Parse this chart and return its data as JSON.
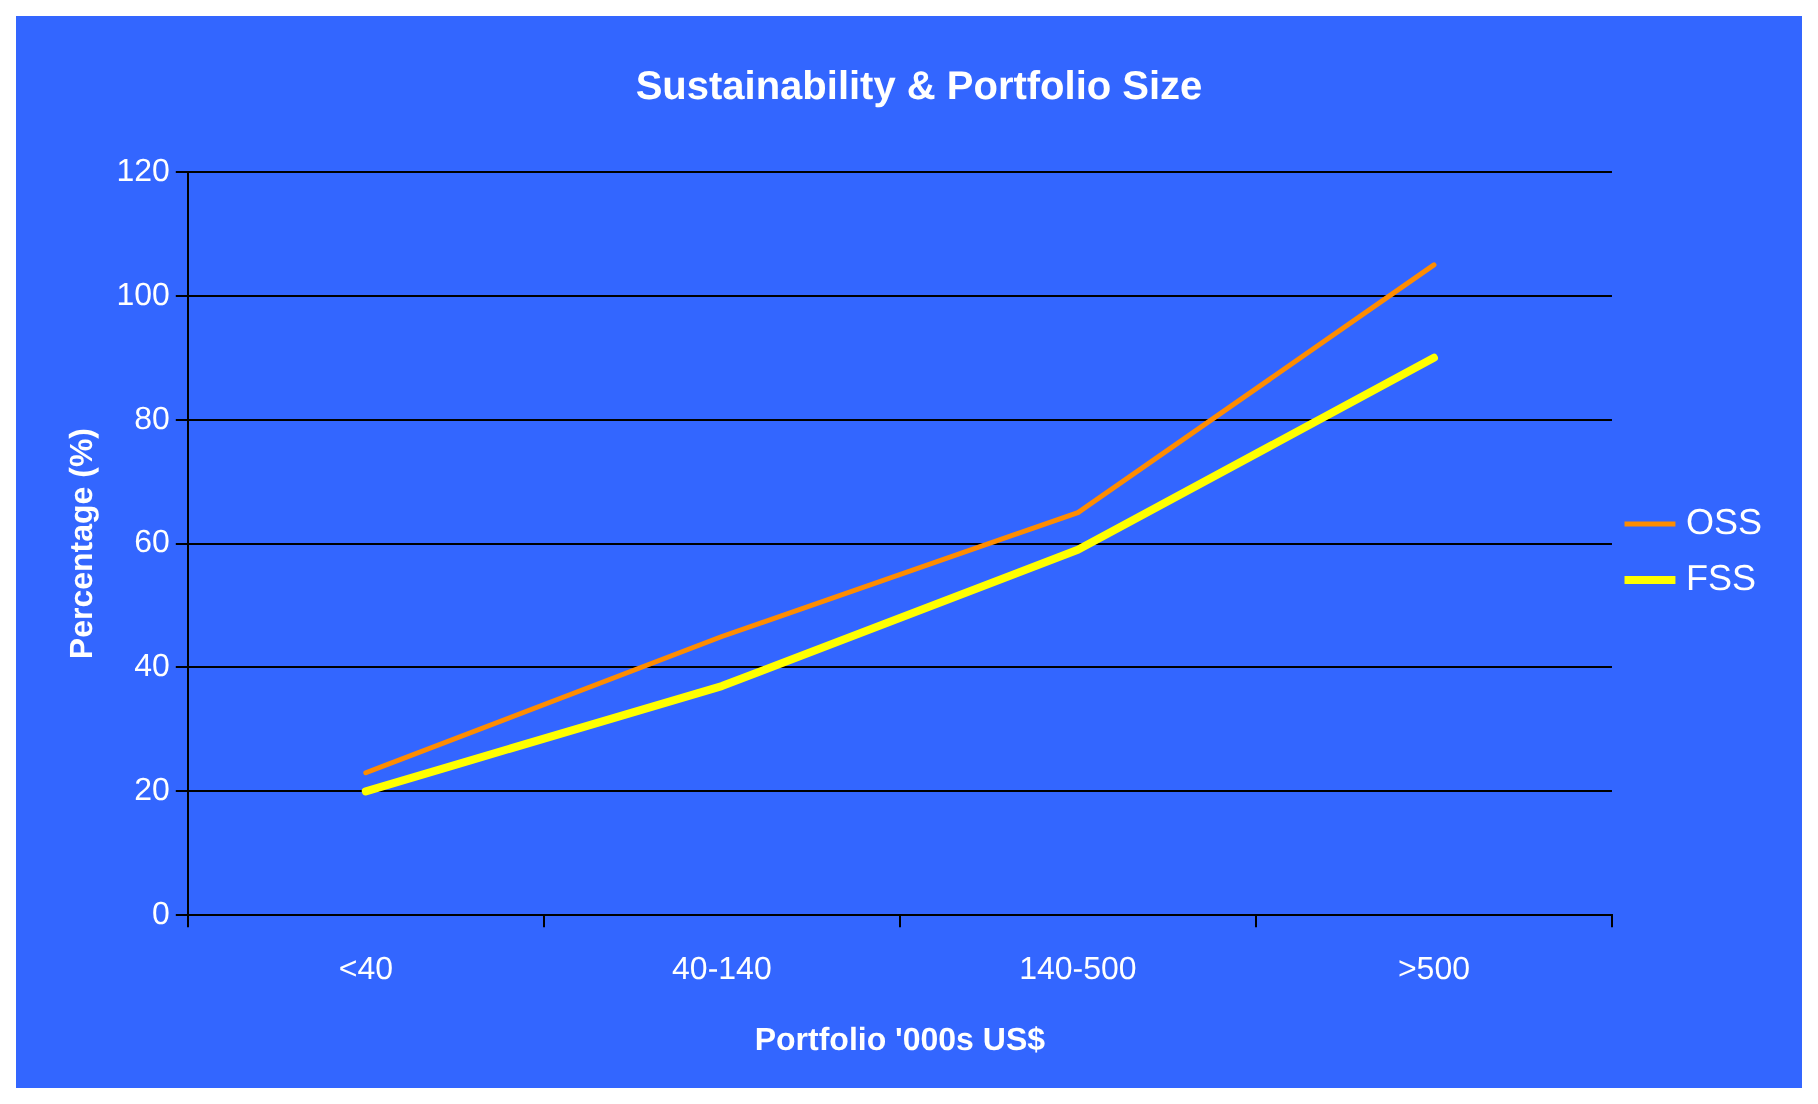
{
  "chart_data": {
    "type": "line",
    "title": "Sustainability & Portfolio Size",
    "xlabel": "Portfolio '000s US$",
    "ylabel": "Percentage (%)",
    "categories": [
      "<40",
      "40-140",
      "140-500",
      ">500"
    ],
    "series": [
      {
        "name": "OSS",
        "color": "#ff8c00",
        "values": [
          23,
          45,
          65,
          105
        ]
      },
      {
        "name": "FSS",
        "color": "#ffff00",
        "values": [
          20,
          37,
          59,
          90
        ]
      }
    ],
    "ylim": [
      0,
      120
    ],
    "yticks": [
      0,
      20,
      40,
      60,
      80,
      100,
      120
    ],
    "grid": "y",
    "legend": "right",
    "marker": "none",
    "line_style": "solid"
  }
}
